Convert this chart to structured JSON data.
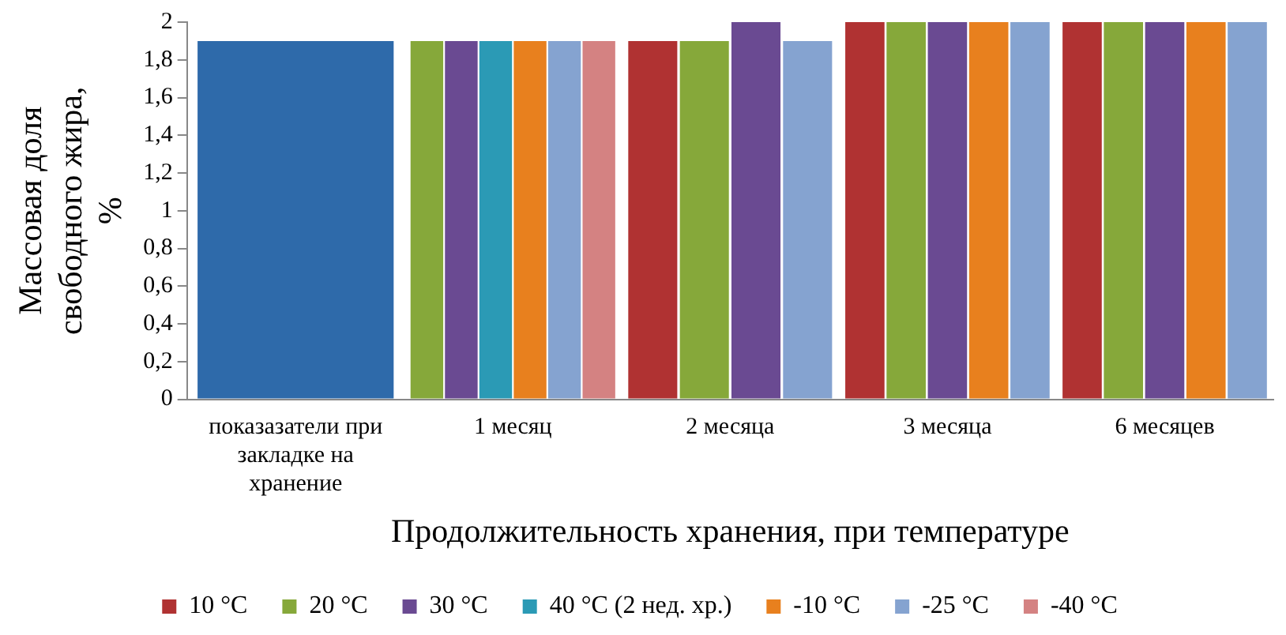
{
  "chart_data": {
    "type": "bar",
    "xlabel": "Продолжительность хранения, при температуре",
    "ylabel": "Массовая доля свободного жира, %",
    "categories": [
      "показазатели при закладке на хранение",
      "1 месяц",
      "2 месяца",
      "3 месяца",
      "6 месяцев"
    ],
    "series": [
      {
        "name": "10 °C",
        "color": "#b03232",
        "values": [
          null,
          null,
          1.9,
          2,
          2
        ]
      },
      {
        "name": "20 °C",
        "color": "#86a83a",
        "values": [
          null,
          1.9,
          1.9,
          2,
          2
        ]
      },
      {
        "name": "30 °C",
        "color": "#6a4a92",
        "values": [
          null,
          1.9,
          2,
          2,
          2
        ]
      },
      {
        "name": "40 °C (2 нед. хр.)",
        "color": "#2b9ab5",
        "values": [
          null,
          1.9,
          null,
          null,
          null
        ]
      },
      {
        "name": "-10 °C",
        "color": "#e8801e",
        "values": [
          null,
          1.9,
          null,
          2,
          2
        ]
      },
      {
        "name": "-25 °C",
        "color": "#85a3d0",
        "values": [
          null,
          1.9,
          1.9,
          2,
          2
        ]
      },
      {
        "name": "-40 °C",
        "color": "#d48282",
        "values": [
          null,
          1.9,
          null,
          null,
          null
        ]
      },
      {
        "color": "#2e6aaa",
        "values": [
          1.9,
          null,
          null,
          null,
          null
        ]
      }
    ],
    "ylim": [
      0,
      2
    ],
    "yticks": [
      {
        "value": 0,
        "label": "0"
      },
      {
        "value": 0.2,
        "label": "0,2"
      },
      {
        "value": 0.4,
        "label": "0,4"
      },
      {
        "value": 0.6,
        "label": "0,6"
      },
      {
        "value": 0.8,
        "label": "0,8"
      },
      {
        "value": 1,
        "label": "1"
      },
      {
        "value": 1.2,
        "label": "1,2"
      },
      {
        "value": 1.4,
        "label": "1,4"
      },
      {
        "value": 1.6,
        "label": "1,6"
      },
      {
        "value": 1.8,
        "label": "1,8"
      },
      {
        "value": 2,
        "label": "2"
      }
    ],
    "grid": false,
    "legend": "bottom"
  }
}
